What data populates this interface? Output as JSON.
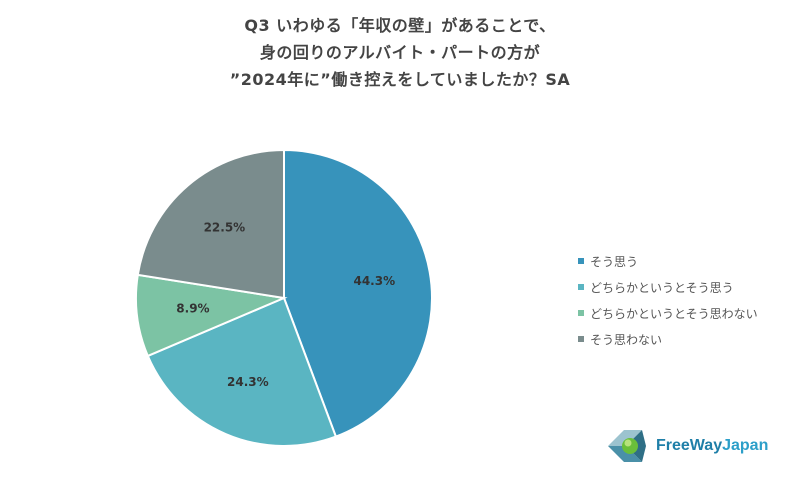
{
  "title": {
    "line1": "Q3 いわゆる「年収の壁」があることで、",
    "line2": "身の回りのアルバイト・パートの方が",
    "line3": "”2024年に”働き控えをしていましたか？SA"
  },
  "chart_data": {
    "type": "pie",
    "categories": [
      "そう思う",
      "どちらかというとそう思う",
      "どちらかというとそう思わない",
      "そう思わない"
    ],
    "values": [
      44.3,
      24.3,
      8.9,
      22.5
    ],
    "data_labels": [
      "44.3%",
      "24.3%",
      "8.9%",
      "22.5%"
    ],
    "colors": [
      "#3793bb",
      "#5ab5c2",
      "#7cc3a4",
      "#7a8c8d"
    ],
    "start_angle_deg": 0,
    "direction": "clockwise",
    "legend_position": "right"
  },
  "legend": {
    "items": [
      "そう思う",
      "どちらかというとそう思う",
      "どちらかというとそう思わない",
      "そう思わない"
    ]
  },
  "logo": {
    "text_part1": "FreeWay",
    "text_part2": "Japan",
    "icon": "freewayjapan-logo-icon"
  }
}
